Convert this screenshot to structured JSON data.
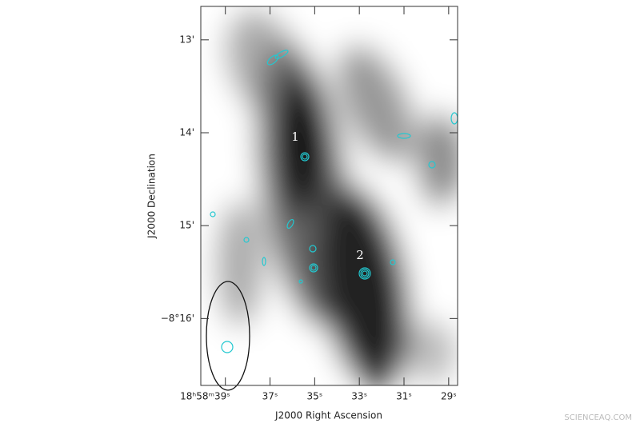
{
  "chart_data": {
    "type": "image",
    "xlabel": "J2000 Right Ascension",
    "ylabel": "J2000 Declination",
    "xlim": [
      40.1,
      28.6
    ],
    "xticks": [
      {
        "value": 39,
        "label": "18ʰ58ᵐ39ˢ"
      },
      {
        "value": 37,
        "label": "37ˢ"
      },
      {
        "value": 35,
        "label": "35ˢ"
      },
      {
        "value": 33,
        "label": "33ˢ"
      },
      {
        "value": 31,
        "label": "31ˢ"
      },
      {
        "value": 29,
        "label": "29ˢ"
      }
    ],
    "ylim": [
      12.64,
      16.72
    ],
    "yticks": [
      {
        "value": 13,
        "label": "13'"
      },
      {
        "value": 14,
        "label": "14'"
      },
      {
        "value": 15,
        "label": "15'"
      },
      {
        "value": 16,
        "label": "−8°16'"
      }
    ],
    "annotations": [
      "1",
      "2"
    ],
    "watermark": "SCIENCEAQ.COM"
  }
}
